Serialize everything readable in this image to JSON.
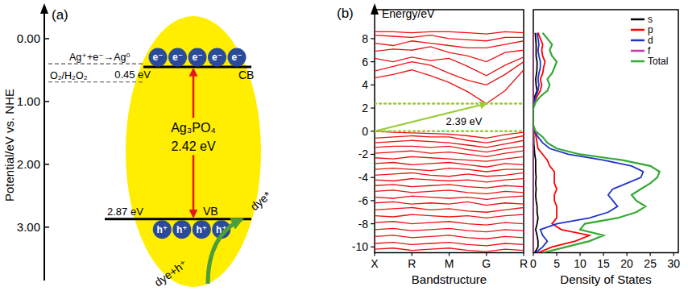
{
  "chart_data": [
    {
      "type": "energy_level",
      "title": "(a)",
      "ylabel": "Potential/eV vs. NHE",
      "ylim": [
        -0.5,
        3.85
      ],
      "yticks": [
        {
          "value": 0,
          "label": "0.00"
        },
        {
          "value": 1,
          "label": "1.00"
        },
        {
          "value": 2,
          "label": "2.00"
        },
        {
          "value": 3,
          "label": "3.00"
        }
      ],
      "material": "Ag₃PO₄",
      "bands": [
        {
          "name": "CB",
          "value": 0.45,
          "label": "0.45 eV",
          "carriers": [
            "e⁻",
            "e⁻",
            "e⁻",
            "e⁻",
            "e⁻"
          ]
        },
        {
          "name": "VB",
          "value": 2.87,
          "label": "2.87 eV",
          "carriers": [
            "h⁺",
            "h⁺",
            "h⁺",
            "h⁺"
          ]
        }
      ],
      "band_gap": {
        "value": 2.42,
        "label": "2.42 eV"
      },
      "redox_levels": [
        {
          "label": "Ag⁺+e⁻→Ag⁰",
          "value": 0.4
        },
        {
          "label": "O₂/H₂O₂",
          "value": 0.69
        }
      ],
      "annotations": {
        "reactant": "dye+h⁺",
        "product": "dye*"
      }
    },
    {
      "type": "line",
      "title": "(b)",
      "ylabel": "Energy/eV",
      "xlabel": "Bandstructure",
      "x": [
        0,
        0.5,
        1,
        1.5,
        2,
        2.5,
        3,
        3.5,
        4
      ],
      "xlim": [
        0,
        4
      ],
      "xticks": [
        {
          "value": 0,
          "label": "X"
        },
        {
          "value": 1,
          "label": "R"
        },
        {
          "value": 2,
          "label": "M"
        },
        {
          "value": 3,
          "label": "G"
        },
        {
          "value": 4,
          "label": "R"
        }
      ],
      "ylim": [
        -10.5,
        10.5
      ],
      "yticks": [
        -10,
        -8,
        -6,
        -4,
        -2,
        0,
        2,
        4,
        6,
        8
      ],
      "color": "#ee1111",
      "series": [
        {
          "values": [
            4.6,
            4.9,
            5.3,
            4.8,
            4.2,
            3.4,
            2.39,
            3.5,
            5.3
          ]
        },
        {
          "values": [
            5.2,
            5.6,
            6.0,
            5.7,
            5.0,
            4.4,
            4.0,
            4.9,
            6.0
          ]
        },
        {
          "values": [
            6.3,
            6.0,
            6.4,
            6.1,
            6.3,
            5.6,
            4.8,
            5.7,
            6.4
          ]
        },
        {
          "values": [
            6.9,
            7.1,
            7.0,
            7.3,
            6.8,
            6.5,
            6.0,
            6.8,
            7.0
          ]
        },
        {
          "values": [
            7.6,
            7.4,
            7.8,
            7.6,
            7.4,
            7.2,
            7.2,
            7.5,
            7.8
          ]
        },
        {
          "values": [
            8.3,
            8.2,
            8.1,
            8.3,
            8.0,
            7.9,
            7.8,
            8.1,
            8.1
          ]
        },
        {
          "values": [
            8.6,
            8.6,
            8.5,
            8.6,
            8.6,
            8.5,
            8.4,
            8.6,
            8.5
          ]
        },
        {
          "values": [
            0,
            -0.1,
            -0.15,
            -0.2,
            -0.25,
            -0.4,
            -0.6,
            -0.3,
            -0.1
          ]
        },
        {
          "values": [
            -0.6,
            -0.5,
            -0.4,
            -0.5,
            -0.5,
            -0.8,
            -1.0,
            -0.7,
            -0.4
          ]
        },
        {
          "values": [
            -1.0,
            -0.9,
            -0.8,
            -0.9,
            -1.0,
            -1.2,
            -1.4,
            -1.1,
            -0.8
          ]
        },
        {
          "values": [
            -1.4,
            -1.3,
            -1.3,
            -1.4,
            -1.3,
            -1.6,
            -1.8,
            -1.5,
            -1.3
          ]
        },
        {
          "values": [
            -1.9,
            -1.8,
            -1.7,
            -1.9,
            -1.8,
            -2.0,
            -2.2,
            -1.9,
            -1.7
          ]
        },
        {
          "values": [
            -2.3,
            -2.4,
            -2.2,
            -2.3,
            -2.4,
            -2.5,
            -2.6,
            -2.4,
            -2.2
          ]
        },
        {
          "values": [
            -2.8,
            -2.7,
            -2.9,
            -2.8,
            -2.7,
            -2.9,
            -3.1,
            -2.8,
            -2.9
          ]
        },
        {
          "values": [
            -3.3,
            -3.2,
            -3.3,
            -3.4,
            -3.2,
            -3.3,
            -3.5,
            -3.3,
            -3.3
          ]
        },
        {
          "values": [
            -3.8,
            -3.7,
            -3.6,
            -3.8,
            -3.9,
            -3.7,
            -3.9,
            -3.8,
            -3.6
          ]
        },
        {
          "values": [
            -4.2,
            -4.3,
            -4.1,
            -4.2,
            -4.3,
            -4.2,
            -4.4,
            -4.2,
            -4.1
          ]
        },
        {
          "values": [
            -4.7,
            -4.6,
            -4.8,
            -4.7,
            -4.6,
            -4.8,
            -4.9,
            -4.7,
            -4.8
          ]
        },
        {
          "values": [
            -5.2,
            -5.1,
            -5.3,
            -5.2,
            -5.1,
            -5.3,
            -5.4,
            -5.2,
            -5.3
          ]
        },
        {
          "values": [
            -5.7,
            -5.8,
            -5.6,
            -5.7,
            -5.8,
            -5.7,
            -5.9,
            -5.7,
            -5.6
          ]
        },
        {
          "values": [
            -6.2,
            -6.1,
            -6.3,
            -6.2,
            -6.3,
            -6.1,
            -6.4,
            -6.2,
            -6.3
          ]
        },
        {
          "values": [
            -6.8,
            -6.7,
            -6.6,
            -6.8,
            -6.7,
            -6.9,
            -7.0,
            -6.8,
            -6.6
          ]
        },
        {
          "values": [
            -7.3,
            -7.4,
            -7.2,
            -7.3,
            -7.4,
            -7.3,
            -7.5,
            -7.3,
            -7.2
          ]
        },
        {
          "values": [
            -7.9,
            -7.8,
            -8.0,
            -7.9,
            -7.8,
            -8.0,
            -8.1,
            -7.9,
            -8.0
          ]
        },
        {
          "values": [
            -8.5,
            -8.4,
            -8.6,
            -8.5,
            -8.4,
            -8.6,
            -8.7,
            -8.5,
            -8.6
          ]
        },
        {
          "values": [
            -9.1,
            -9.0,
            -9.2,
            -9.1,
            -9.0,
            -9.2,
            -9.3,
            -9.1,
            -9.2
          ]
        },
        {
          "values": [
            -9.7,
            -9.6,
            -9.8,
            -9.7,
            -9.6,
            -9.8,
            -9.9,
            -9.7,
            -9.8
          ]
        },
        {
          "values": [
            -10.2,
            -10.1,
            -10.3,
            -10.2,
            -10.1,
            -10.3,
            -10.4,
            -10.2,
            -10.3
          ]
        }
      ],
      "band_gap": {
        "x": [
          0,
          3
        ],
        "values": [
          0,
          2.39
        ],
        "label": "2.39 eV"
      }
    },
    {
      "type": "line",
      "orientation": "horizontal",
      "xlabel": "Density of States",
      "y": [
        -10.5,
        -10,
        -9.5,
        -9,
        -8.5,
        -8,
        -7.5,
        -7,
        -6.5,
        -6,
        -5.5,
        -5,
        -4.5,
        -4,
        -3.5,
        -3,
        -2.5,
        -2,
        -1.5,
        -1,
        -0.5,
        0,
        0.5,
        1,
        1.5,
        2,
        2.5,
        3,
        3.5,
        4,
        4.5,
        5,
        5.5,
        6,
        6.5,
        7,
        7.5,
        8,
        8.5
      ],
      "xlim": [
        0,
        31
      ],
      "xticks": [
        0,
        5,
        10,
        15,
        20,
        25,
        30
      ],
      "ylim": [
        -10.5,
        10.5
      ],
      "tick_labels": "x",
      "legend": "upper right",
      "series": [
        {
          "name": "s",
          "color": "#000000",
          "values": [
            0.3,
            1,
            1,
            0.8,
            0.5,
            0.8,
            1,
            0.8,
            0.8,
            0.6,
            0.5,
            0.6,
            0.5,
            0.6,
            0.5,
            0.5,
            0.5,
            0.3,
            0.2,
            0.1,
            0.1,
            0,
            0,
            0,
            0,
            0,
            0.1,
            0.3,
            0.8,
            0.6,
            0.5,
            0.7,
            0.8,
            0.8,
            0.6,
            0.6,
            0.6,
            0.5,
            0.4
          ]
        },
        {
          "name": "p",
          "color": "#ff0000",
          "values": [
            1,
            4,
            9,
            12,
            6,
            4,
            5,
            5,
            5,
            4.5,
            4.5,
            5,
            4.5,
            4.5,
            4.5,
            3.5,
            3,
            2,
            1,
            0.8,
            0.6,
            0.2,
            0,
            0,
            0,
            0,
            0.2,
            0.8,
            1.5,
            1.8,
            1.5,
            2,
            2.2,
            2.5,
            2,
            1.8,
            2,
            1.5,
            1
          ]
        },
        {
          "name": "d",
          "color": "#2233cc",
          "values": [
            0.5,
            2,
            3,
            2,
            1.5,
            5,
            12,
            16,
            18,
            17,
            16,
            17,
            20,
            23,
            23.5,
            21,
            15,
            7.5,
            3.5,
            2,
            1,
            0.3,
            0,
            0,
            0,
            0,
            0.2,
            0.5,
            1,
            1.2,
            1,
            1.2,
            1.5,
            1.5,
            1.2,
            1,
            1.2,
            1,
            0.8
          ]
        },
        {
          "name": "f",
          "color": "#cc33aa",
          "values": [
            0,
            0,
            0,
            0,
            0,
            0,
            0,
            0,
            0,
            0,
            0,
            0,
            0,
            0,
            0,
            0,
            0,
            0,
            0,
            0,
            0,
            0,
            0,
            0,
            0,
            0,
            0,
            0,
            0,
            0,
            0,
            0,
            0,
            0,
            0,
            0,
            0,
            0,
            0
          ]
        },
        {
          "name": "Total",
          "color": "#33aa33",
          "values": [
            2,
            7,
            12,
            15,
            10,
            11,
            18,
            22,
            24,
            22,
            21,
            23,
            25,
            26.5,
            27,
            25,
            19,
            10,
            5,
            3,
            2,
            0.5,
            0,
            0,
            0,
            0,
            0.5,
            1.5,
            3,
            3.5,
            3,
            4,
            4.5,
            5,
            4,
            3.5,
            4,
            3,
            2
          ]
        }
      ]
    }
  ]
}
